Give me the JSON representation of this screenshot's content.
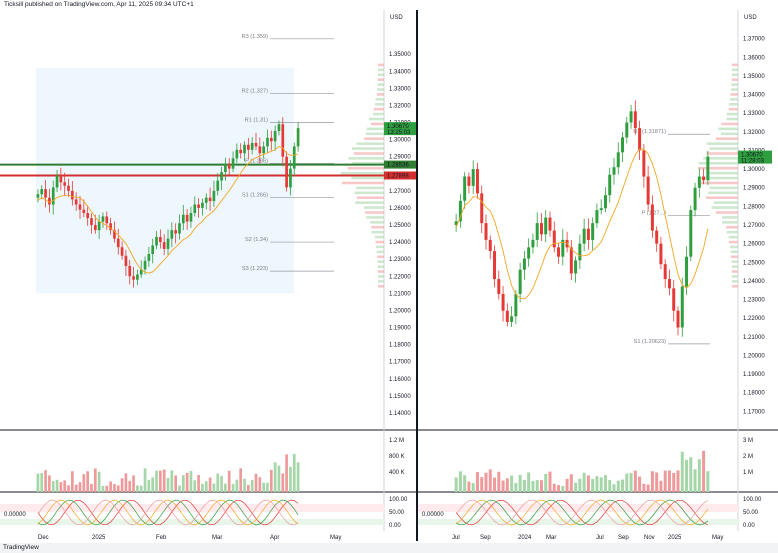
{
  "header": {
    "text": "Ticksill published on TradingView.com, Apr 11, 2025 09:34 UTC+1"
  },
  "footer": {
    "brand": "TradingView"
  },
  "colors": {
    "up": "#26a69a",
    "down": "#ef5350",
    "green": "#2e9e3e",
    "red": "#e53935",
    "ma": "#f5a623",
    "vol_up": "#a5d6a7",
    "vol_down": "#ef9a9a",
    "sr_green": "#2e7d32",
    "sr_red": "#d32f2f",
    "pivot_box": "#e3f2fd"
  },
  "chart_data": [
    {
      "type": "candlestick",
      "name": "left",
      "currency": "USD",
      "ylim": [
        1.13,
        1.37
      ],
      "ticks": [
        "1.35000",
        "1.34000",
        "1.33000",
        "1.32000",
        "1.31000",
        "1.30000",
        "1.29000",
        "1.28000",
        "1.27000",
        "1.26000",
        "1.25000",
        "1.24000",
        "1.23000",
        "1.22000",
        "1.21000",
        "1.20000",
        "1.19000",
        "1.18000",
        "1.17000",
        "1.16000",
        "1.15000",
        "1.14000"
      ],
      "x_labels": [
        "Dec",
        "2025",
        "Feb",
        "Mar",
        "Apr",
        "May"
      ],
      "last_price": "1.30670",
      "last_countdown": "13:25:03",
      "levels": [
        {
          "label": "R3 (1.359)",
          "value": 1.359
        },
        {
          "label": "R2 (1.327)",
          "value": 1.327
        },
        {
          "label": "R1 (1.31)",
          "value": 1.31
        },
        {
          "label": "P (1.286)",
          "value": 1.286
        },
        {
          "label": "S1 (1.266)",
          "value": 1.266
        },
        {
          "label": "S2 (1.24)",
          "value": 1.24
        },
        {
          "label": "S3 (1.223)",
          "value": 1.223
        }
      ],
      "green_line": {
        "label": "1.28536",
        "value": 1.28536
      },
      "red_line": {
        "label": "1.27898",
        "value": 1.27898
      },
      "closes": [
        1.268,
        1.271,
        1.266,
        1.262,
        1.272,
        1.279,
        1.275,
        1.273,
        1.27,
        1.265,
        1.262,
        1.259,
        1.257,
        1.254,
        1.25,
        1.247,
        1.252,
        1.255,
        1.251,
        1.247,
        1.242,
        1.237,
        1.232,
        1.226,
        1.22,
        1.218,
        1.221,
        1.224,
        1.229,
        1.233,
        1.238,
        1.243,
        1.24,
        1.236,
        1.242,
        1.247,
        1.245,
        1.251,
        1.256,
        1.252,
        1.257,
        1.262,
        1.26,
        1.263,
        1.266,
        1.264,
        1.27,
        1.276,
        1.281,
        1.286,
        1.283,
        1.289,
        1.294,
        1.292,
        1.297,
        1.294,
        1.298,
        1.296,
        1.292,
        1.296,
        1.301,
        1.299,
        1.305,
        1.309,
        1.29,
        1.272,
        1.283,
        1.296,
        1.3067
      ],
      "vol_labels": [
        "1.2 M",
        "800 K",
        "400 K"
      ],
      "osc_labels": [
        "100.00",
        "50.00",
        "0.00"
      ],
      "osc_value": "0.00000"
    },
    {
      "type": "candlestick",
      "name": "right",
      "currency": "USD",
      "ylim": [
        1.16,
        1.38
      ],
      "ticks": [
        "1.37000",
        "1.36000",
        "1.35000",
        "1.34000",
        "1.33000",
        "1.32000",
        "1.31000",
        "1.30000",
        "1.29000",
        "1.28000",
        "1.27000",
        "1.26000",
        "1.25000",
        "1.24000",
        "1.23000",
        "1.22000",
        "1.21000",
        "1.20000",
        "1.19000",
        "1.18000",
        "1.17000"
      ],
      "x_labels": [
        "Jul",
        "Sep",
        "2024",
        "Mar",
        "Jul",
        "Sep",
        "Nov",
        "2025",
        "May"
      ],
      "last_price": "1.30670",
      "last_countdown": "11:28:03",
      "levels": [
        {
          "label": "R1 (1.31871)",
          "value": 1.31871
        },
        {
          "label": "P (1.27...)",
          "value": 1.275
        },
        {
          "label": "S1 (1.20623)",
          "value": 1.20623
        }
      ],
      "closes": [
        1.272,
        1.283,
        1.296,
        1.291,
        1.3,
        1.287,
        1.271,
        1.262,
        1.256,
        1.241,
        1.233,
        1.224,
        1.218,
        1.221,
        1.233,
        1.246,
        1.252,
        1.258,
        1.262,
        1.271,
        1.265,
        1.274,
        1.267,
        1.258,
        1.253,
        1.262,
        1.258,
        1.244,
        1.251,
        1.26,
        1.268,
        1.262,
        1.271,
        1.278,
        1.279,
        1.286,
        1.297,
        1.301,
        1.309,
        1.317,
        1.325,
        1.331,
        1.322,
        1.31,
        1.296,
        1.281,
        1.267,
        1.26,
        1.249,
        1.241,
        1.236,
        1.224,
        1.215,
        1.237,
        1.253,
        1.278,
        1.29,
        1.296,
        1.294,
        1.3067
      ],
      "vol_labels": [
        "3 M",
        "2 M",
        "1 M"
      ],
      "osc_labels": [
        "100.00",
        "50.00",
        "0.00"
      ],
      "osc_value": "0.00000"
    }
  ]
}
